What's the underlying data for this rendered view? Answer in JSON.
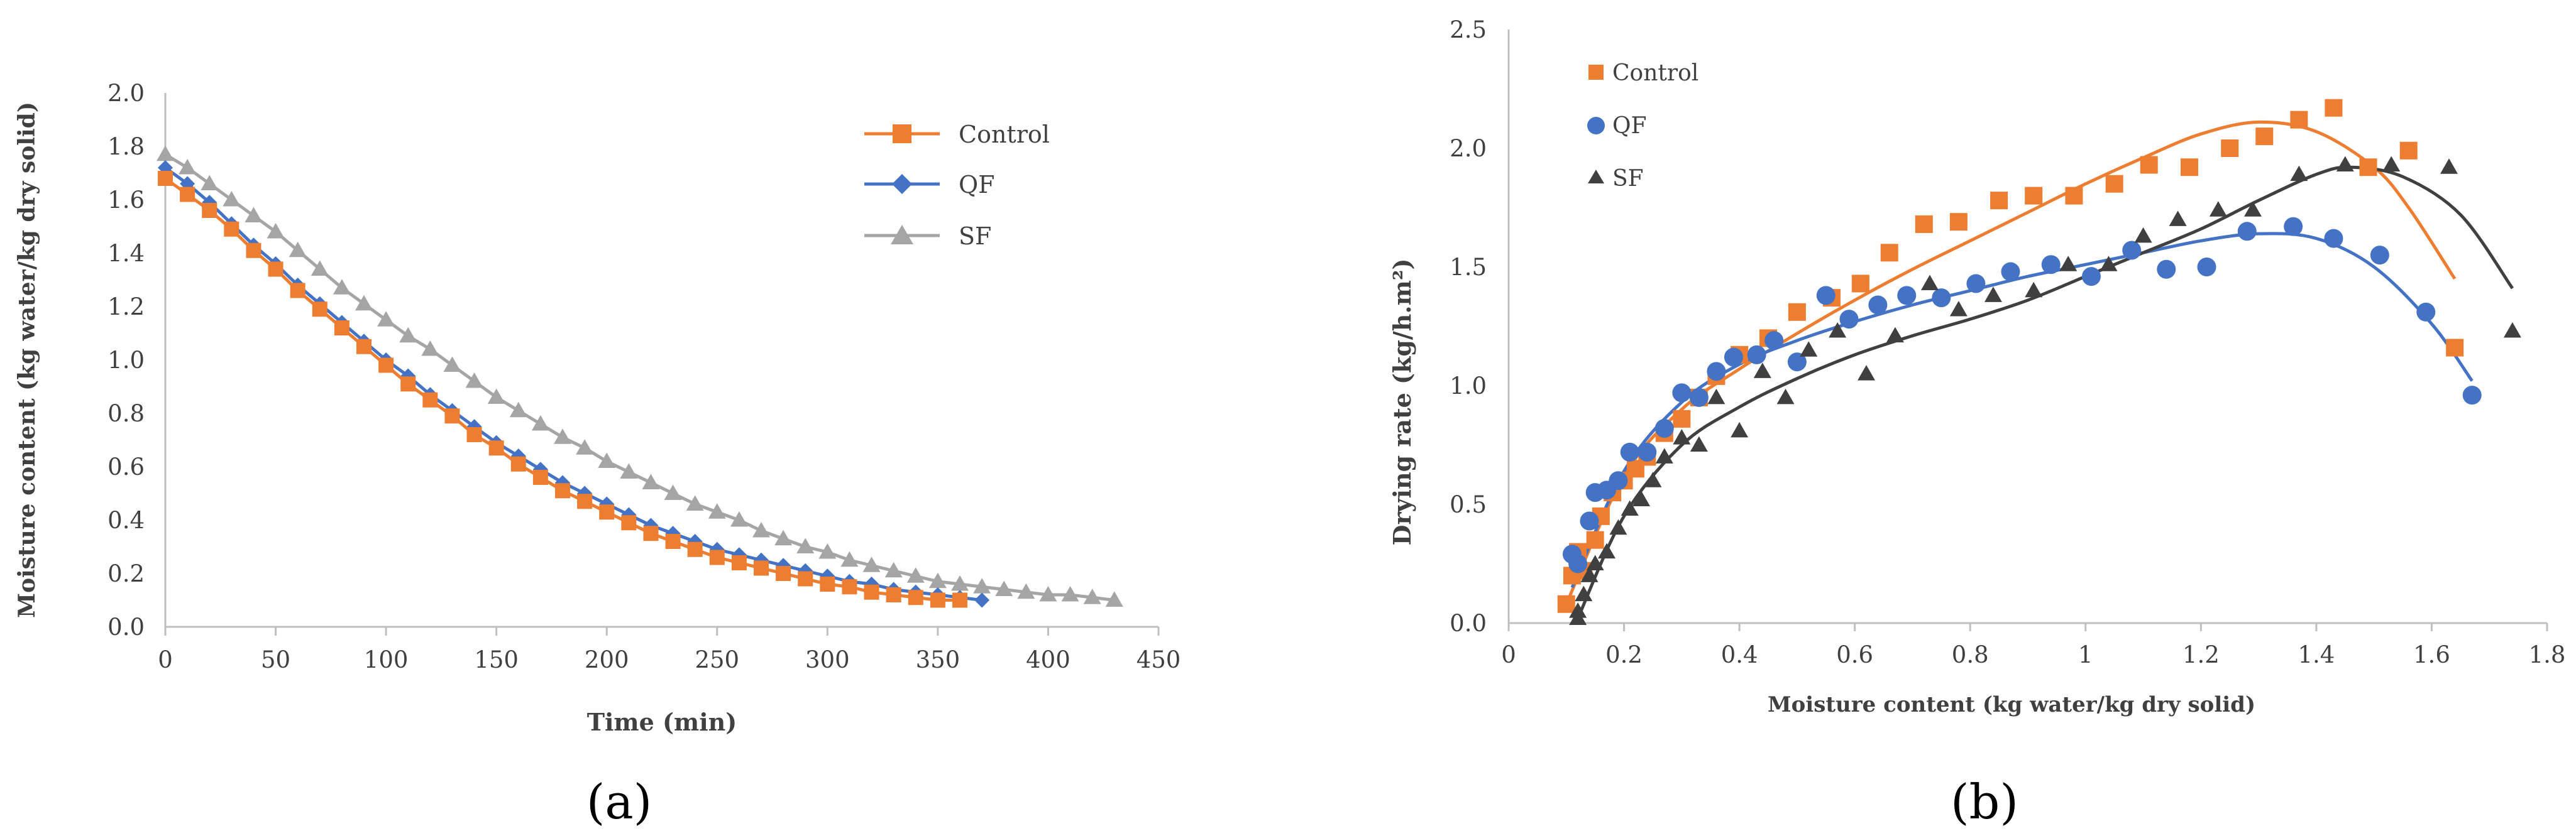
{
  "chart_data": [
    {
      "type": "line",
      "panel_label": "(a)",
      "title": "",
      "xlabel": "Time (min)",
      "ylabel": "Moisture content (kg water/kg dry solid)",
      "xlim": [
        0,
        450
      ],
      "ylim": [
        0,
        2.0
      ],
      "xticks": [
        0,
        50,
        100,
        150,
        200,
        250,
        300,
        350,
        400,
        450
      ],
      "yticks": [
        0.0,
        0.2,
        0.4,
        0.6,
        0.8,
        1.0,
        1.2,
        1.4,
        1.6,
        1.8,
        2.0
      ],
      "ytick_labels": [
        "0.0",
        "0.2",
        "0.4",
        "0.6",
        "0.8",
        "1.0",
        "1.2",
        "1.4",
        "1.6",
        "1.8",
        "2.0"
      ],
      "legend_position": "top-right",
      "series": [
        {
          "name": "Control",
          "color": "#ED7D31",
          "marker": "square",
          "x": [
            0,
            10,
            20,
            30,
            40,
            50,
            60,
            70,
            80,
            90,
            100,
            110,
            120,
            130,
            140,
            150,
            160,
            170,
            180,
            190,
            200,
            210,
            220,
            230,
            240,
            250,
            260,
            270,
            280,
            290,
            300,
            310,
            320,
            330,
            340,
            350,
            360
          ],
          "y": [
            1.68,
            1.62,
            1.56,
            1.49,
            1.41,
            1.34,
            1.26,
            1.19,
            1.12,
            1.05,
            0.98,
            0.91,
            0.85,
            0.79,
            0.72,
            0.67,
            0.61,
            0.56,
            0.51,
            0.47,
            0.43,
            0.39,
            0.35,
            0.32,
            0.29,
            0.26,
            0.24,
            0.22,
            0.2,
            0.18,
            0.16,
            0.15,
            0.13,
            0.12,
            0.11,
            0.1,
            0.1
          ]
        },
        {
          "name": "QF",
          "color": "#4472C4",
          "marker": "diamond",
          "x": [
            0,
            10,
            20,
            30,
            40,
            50,
            60,
            70,
            80,
            90,
            100,
            110,
            120,
            130,
            140,
            150,
            160,
            170,
            180,
            190,
            200,
            210,
            220,
            230,
            240,
            250,
            260,
            270,
            280,
            290,
            300,
            310,
            320,
            330,
            340,
            350,
            360,
            370
          ],
          "y": [
            1.72,
            1.66,
            1.59,
            1.51,
            1.43,
            1.36,
            1.28,
            1.21,
            1.14,
            1.07,
            1.0,
            0.94,
            0.87,
            0.81,
            0.75,
            0.69,
            0.64,
            0.59,
            0.54,
            0.5,
            0.46,
            0.42,
            0.38,
            0.35,
            0.32,
            0.29,
            0.27,
            0.25,
            0.23,
            0.21,
            0.19,
            0.17,
            0.16,
            0.14,
            0.13,
            0.12,
            0.11,
            0.1
          ]
        },
        {
          "name": "SF",
          "color": "#A5A5A5",
          "marker": "triangle",
          "x": [
            0,
            10,
            20,
            30,
            40,
            50,
            60,
            70,
            80,
            90,
            100,
            110,
            120,
            130,
            140,
            150,
            160,
            170,
            180,
            190,
            200,
            210,
            220,
            230,
            240,
            250,
            260,
            270,
            280,
            290,
            300,
            310,
            320,
            330,
            340,
            350,
            360,
            370,
            380,
            390,
            400,
            410,
            420,
            430
          ],
          "y": [
            1.77,
            1.72,
            1.66,
            1.6,
            1.54,
            1.48,
            1.41,
            1.34,
            1.27,
            1.21,
            1.15,
            1.09,
            1.04,
            0.98,
            0.92,
            0.86,
            0.81,
            0.76,
            0.71,
            0.67,
            0.62,
            0.58,
            0.54,
            0.5,
            0.46,
            0.43,
            0.4,
            0.36,
            0.33,
            0.3,
            0.28,
            0.25,
            0.23,
            0.21,
            0.19,
            0.17,
            0.16,
            0.15,
            0.14,
            0.13,
            0.12,
            0.12,
            0.11,
            0.1
          ]
        }
      ]
    },
    {
      "type": "scatter",
      "panel_label": "(b)",
      "title": "",
      "xlabel": "Moisture content (kg water/kg dry solid)",
      "ylabel": "Drying rate (kg/h.m²)",
      "xlim": [
        0,
        1.8
      ],
      "ylim": [
        0,
        2.5
      ],
      "xticks": [
        0,
        0.2,
        0.4,
        0.6,
        0.8,
        1.0,
        1.2,
        1.4,
        1.6,
        1.8
      ],
      "xtick_labels": [
        "0",
        "0.2",
        "0.4",
        "0.6",
        "0.8",
        "1",
        "1.2",
        "1.4",
        "1.6",
        "1.8"
      ],
      "yticks": [
        0.0,
        0.5,
        1.0,
        1.5,
        2.0,
        2.5
      ],
      "ytick_labels": [
        "0.0",
        "0.5",
        "1.0",
        "1.5",
        "2.0",
        "2.5"
      ],
      "legend_position": "top-left",
      "series": [
        {
          "name": "Control",
          "color": "#ED7D31",
          "marker": "square",
          "x": [
            0.1,
            0.11,
            0.12,
            0.13,
            0.15,
            0.16,
            0.18,
            0.2,
            0.22,
            0.24,
            0.27,
            0.3,
            0.33,
            0.36,
            0.4,
            0.45,
            0.5,
            0.56,
            0.61,
            0.66,
            0.72,
            0.78,
            0.85,
            0.91,
            0.98,
            1.05,
            1.11,
            1.18,
            1.25,
            1.31,
            1.37,
            1.43,
            1.49,
            1.56,
            1.64
          ],
          "y": [
            0.08,
            0.2,
            0.3,
            0.22,
            0.35,
            0.45,
            0.55,
            0.6,
            0.65,
            0.7,
            0.8,
            0.86,
            0.95,
            1.04,
            1.13,
            1.2,
            1.31,
            1.37,
            1.43,
            1.56,
            1.68,
            1.69,
            1.78,
            1.8,
            1.8,
            1.85,
            1.93,
            1.92,
            2.0,
            2.05,
            2.12,
            2.17,
            1.92,
            1.99,
            1.16
          ],
          "trend": [
            [
              0.1,
              0.08
            ],
            [
              0.2,
              0.62
            ],
            [
              0.3,
              0.9
            ],
            [
              0.4,
              1.07
            ],
            [
              0.5,
              1.22
            ],
            [
              0.6,
              1.36
            ],
            [
              0.7,
              1.49
            ],
            [
              0.8,
              1.61
            ],
            [
              0.9,
              1.73
            ],
            [
              1.0,
              1.85
            ],
            [
              1.1,
              1.96
            ],
            [
              1.2,
              2.06
            ],
            [
              1.3,
              2.11
            ],
            [
              1.4,
              2.07
            ],
            [
              1.5,
              1.92
            ],
            [
              1.56,
              1.75
            ],
            [
              1.64,
              1.45
            ]
          ]
        },
        {
          "name": "QF",
          "color": "#4472C4",
          "marker": "circle",
          "x": [
            0.11,
            0.12,
            0.14,
            0.15,
            0.17,
            0.19,
            0.21,
            0.24,
            0.27,
            0.3,
            0.33,
            0.36,
            0.39,
            0.43,
            0.46,
            0.5,
            0.55,
            0.59,
            0.64,
            0.69,
            0.75,
            0.81,
            0.87,
            0.94,
            1.01,
            1.08,
            1.14,
            1.21,
            1.28,
            1.36,
            1.43,
            1.51,
            1.59,
            1.67
          ],
          "y": [
            0.29,
            0.25,
            0.43,
            0.55,
            0.56,
            0.6,
            0.72,
            0.72,
            0.82,
            0.97,
            0.95,
            1.06,
            1.12,
            1.13,
            1.19,
            1.1,
            1.38,
            1.28,
            1.34,
            1.38,
            1.37,
            1.43,
            1.48,
            1.51,
            1.46,
            1.57,
            1.49,
            1.5,
            1.65,
            1.67,
            1.62,
            1.55,
            1.31,
            0.96
          ],
          "trend": [
            [
              0.11,
              0.15
            ],
            [
              0.2,
              0.64
            ],
            [
              0.3,
              0.93
            ],
            [
              0.4,
              1.09
            ],
            [
              0.5,
              1.19
            ],
            [
              0.6,
              1.27
            ],
            [
              0.7,
              1.34
            ],
            [
              0.8,
              1.4
            ],
            [
              0.9,
              1.46
            ],
            [
              1.0,
              1.51
            ],
            [
              1.1,
              1.56
            ],
            [
              1.2,
              1.61
            ],
            [
              1.3,
              1.64
            ],
            [
              1.4,
              1.62
            ],
            [
              1.5,
              1.5
            ],
            [
              1.6,
              1.26
            ],
            [
              1.67,
              1.02
            ]
          ]
        },
        {
          "name": "SF",
          "color": "#404040",
          "marker": "triangle",
          "x": [
            0.12,
            0.12,
            0.13,
            0.14,
            0.15,
            0.17,
            0.19,
            0.21,
            0.23,
            0.25,
            0.27,
            0.3,
            0.33,
            0.36,
            0.4,
            0.44,
            0.48,
            0.52,
            0.57,
            0.62,
            0.67,
            0.73,
            0.78,
            0.84,
            0.91,
            0.97,
            1.04,
            1.1,
            1.16,
            1.23,
            1.29,
            1.37,
            1.45,
            1.53,
            1.63,
            1.74
          ],
          "y": [
            0.02,
            0.05,
            0.12,
            0.2,
            0.25,
            0.3,
            0.4,
            0.48,
            0.52,
            0.6,
            0.7,
            0.78,
            0.75,
            0.95,
            0.81,
            1.06,
            0.95,
            1.15,
            1.23,
            1.05,
            1.21,
            1.43,
            1.32,
            1.38,
            1.4,
            1.51,
            1.51,
            1.63,
            1.7,
            1.74,
            1.74,
            1.89,
            1.93,
            1.93,
            1.92,
            1.23
          ],
          "trend": [
            [
              0.12,
              0.02
            ],
            [
              0.2,
              0.45
            ],
            [
              0.3,
              0.75
            ],
            [
              0.4,
              0.91
            ],
            [
              0.5,
              1.03
            ],
            [
              0.6,
              1.13
            ],
            [
              0.7,
              1.21
            ],
            [
              0.8,
              1.28
            ],
            [
              0.9,
              1.36
            ],
            [
              1.0,
              1.46
            ],
            [
              1.1,
              1.56
            ],
            [
              1.2,
              1.66
            ],
            [
              1.3,
              1.78
            ],
            [
              1.4,
              1.89
            ],
            [
              1.46,
              1.92
            ],
            [
              1.55,
              1.88
            ],
            [
              1.65,
              1.72
            ],
            [
              1.74,
              1.41
            ]
          ]
        }
      ]
    }
  ]
}
